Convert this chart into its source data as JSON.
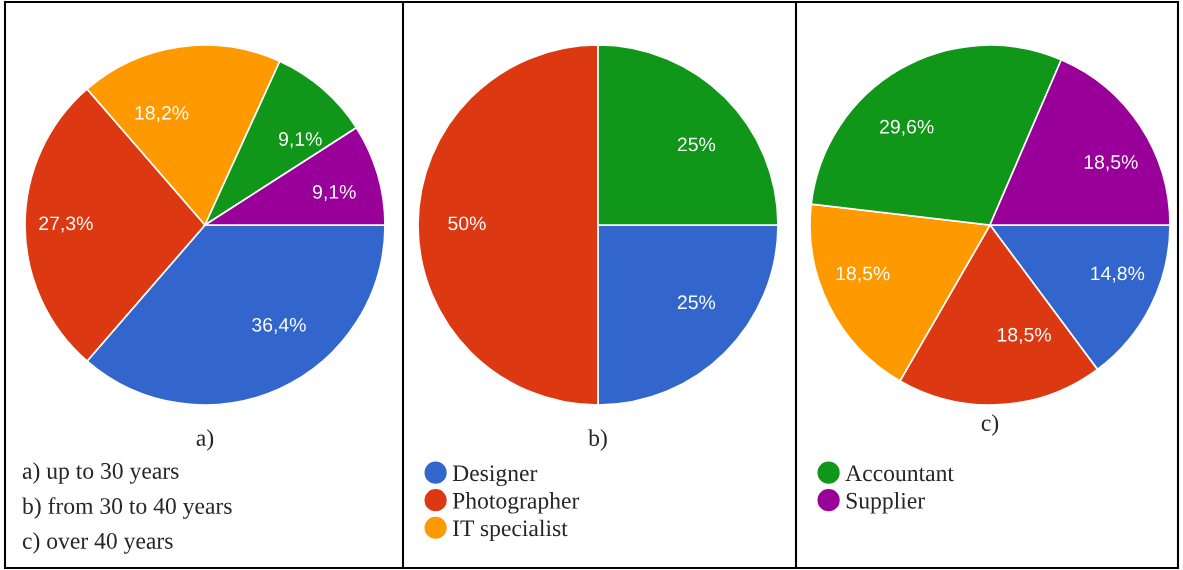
{
  "chart_data": [
    {
      "type": "pie",
      "title": "a)",
      "legend": "bottom",
      "categories": [
        "Designer",
        "Photographer",
        "IT specialist",
        "Accountant",
        "Supplier"
      ],
      "values": [
        36.4,
        27.3,
        18.2,
        9.1,
        9.1
      ],
      "colors": [
        "#3366cc",
        "#dc3912",
        "#ff9900",
        "#109618",
        "#990099"
      ],
      "value_labels": [
        "36,4%",
        "27,3%",
        "18,2%",
        "9,1%",
        "9,1%"
      ],
      "annotations": [
        "a) up to 30 years",
        "b) from 30 to 40 years",
        "c) over 40 years"
      ]
    },
    {
      "type": "pie",
      "title": "b)",
      "categories": [
        null,
        null,
        null
      ],
      "values": [
        25,
        50,
        25
      ],
      "colors": [
        "#3366cc",
        "#dc3912",
        "#109618"
      ],
      "value_labels": [
        "25%",
        "50%",
        "25%"
      ]
    },
    {
      "type": "pie",
      "title": "c)",
      "categories": [
        null,
        null,
        null,
        null,
        null
      ],
      "values": [
        14.8,
        18.5,
        18.5,
        29.6,
        18.5
      ],
      "colors": [
        "#3366cc",
        "#dc3912",
        "#ff9900",
        "#109618",
        "#990099"
      ],
      "value_labels": [
        "14,8%",
        "18,5%",
        "18,5%",
        "29,6%",
        "18,5%"
      ]
    }
  ]
}
